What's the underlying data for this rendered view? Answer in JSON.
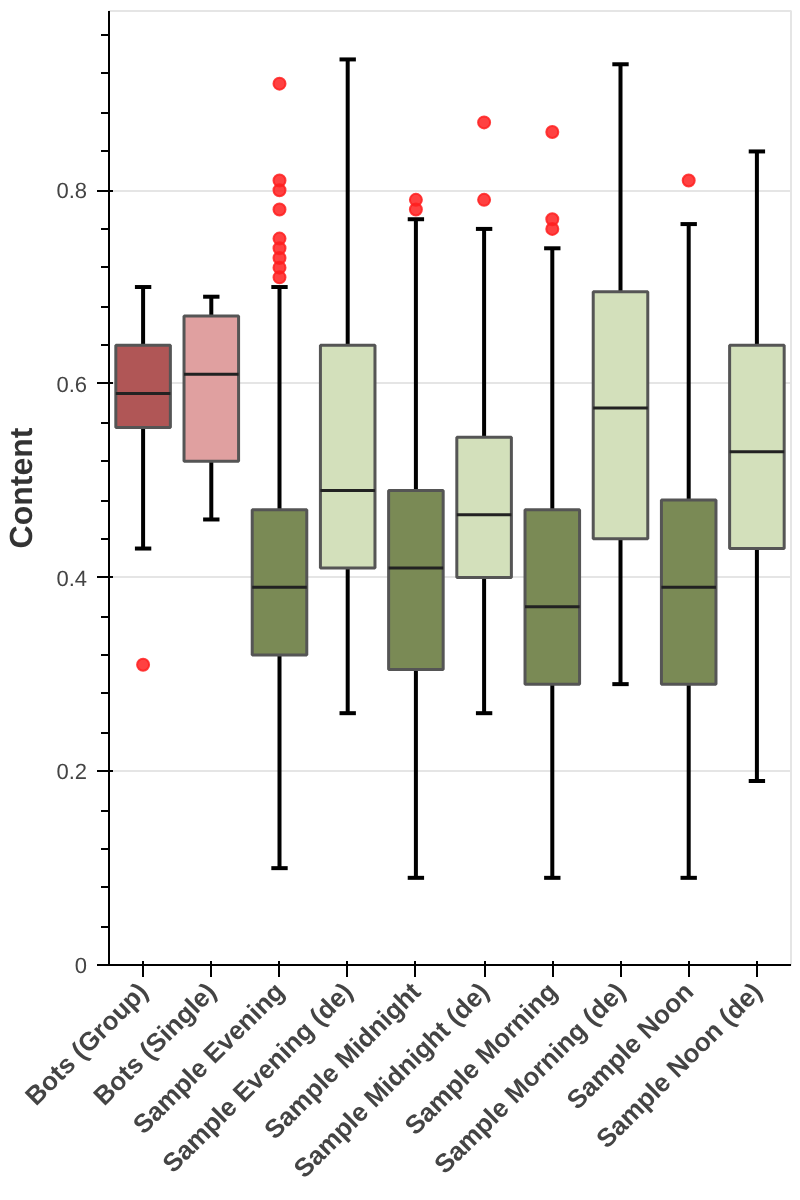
{
  "chart_data": {
    "type": "box",
    "ylabel": "Content",
    "categories": [
      "Bots (Group)",
      "Bots (Single)",
      "Sample Evening",
      "Sample Evening (de)",
      "Sample Midnight",
      "Sample Midnight (de)",
      "Sample Morning",
      "Sample Morning (de)",
      "Sample Noon",
      "Sample Noon (de)"
    ],
    "colors": [
      "#b05656",
      "#e0a0a0",
      "#7a8a55",
      "#d3e0bb",
      "#7a8a55",
      "#d3e0bb",
      "#7a8a55",
      "#d3e0bb",
      "#7a8a55",
      "#d3e0bb"
    ],
    "boxes": [
      {
        "low": 0.43,
        "q1": 0.555,
        "median": 0.59,
        "q3": 0.64,
        "high": 0.7,
        "outliers": [
          0.31
        ]
      },
      {
        "low": 0.46,
        "q1": 0.52,
        "median": 0.61,
        "q3": 0.67,
        "high": 0.69
      },
      {
        "low": 0.1,
        "q1": 0.32,
        "median": 0.39,
        "q3": 0.47,
        "high": 0.7,
        "outliers": [
          0.91,
          0.81,
          0.8,
          0.78,
          0.75,
          0.74,
          0.73,
          0.72,
          0.71
        ]
      },
      {
        "low": 0.26,
        "q1": 0.41,
        "median": 0.49,
        "q3": 0.64,
        "high": 0.935
      },
      {
        "low": 0.09,
        "q1": 0.305,
        "median": 0.41,
        "q3": 0.49,
        "high": 0.77,
        "outliers": [
          0.78,
          0.79
        ]
      },
      {
        "low": 0.26,
        "q1": 0.4,
        "median": 0.465,
        "q3": 0.545,
        "high": 0.76,
        "outliers": [
          0.79,
          0.87
        ]
      },
      {
        "low": 0.09,
        "q1": 0.29,
        "median": 0.37,
        "q3": 0.47,
        "high": 0.74,
        "outliers": [
          0.76,
          0.77,
          0.86
        ]
      },
      {
        "low": 0.29,
        "q1": 0.44,
        "median": 0.575,
        "q3": 0.695,
        "high": 0.93
      },
      {
        "low": 0.09,
        "q1": 0.29,
        "median": 0.39,
        "q3": 0.48,
        "high": 0.765,
        "outliers": [
          0.81
        ]
      },
      {
        "low": 0.19,
        "q1": 0.43,
        "median": 0.53,
        "q3": 0.64,
        "high": 0.84
      }
    ],
    "ylim": [
      0,
      0.985
    ],
    "yticks": [
      0,
      0.2,
      0.4,
      0.6,
      0.8
    ],
    "grid": "y"
  }
}
